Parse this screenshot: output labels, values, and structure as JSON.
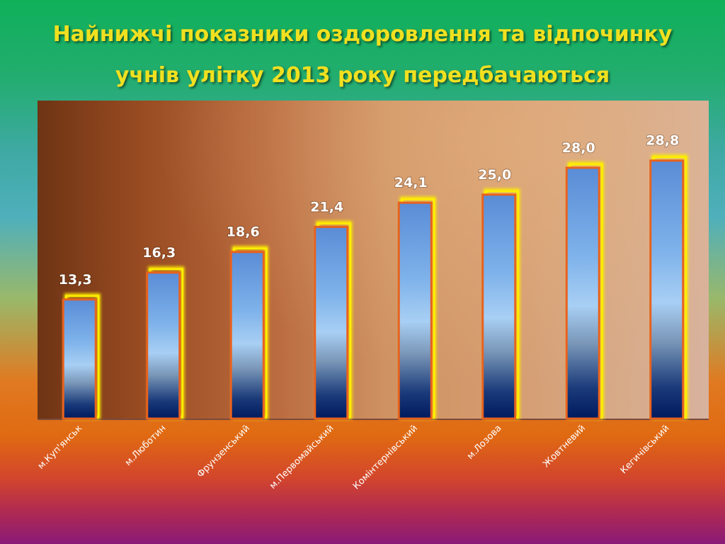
{
  "title": {
    "line1": "Найнижчі показники оздоровлення та відпочинку",
    "line2": "учнів улітку 2013 року передбачаються"
  },
  "chart_data": {
    "type": "bar",
    "categories": [
      "м.Куп'янськ",
      "м.Люботин",
      "Фрунзенський",
      "м.Первомайський",
      "Комінтернівський",
      "м.Лозова",
      "Жовтневий",
      "Кегичівський"
    ],
    "values": [
      13.3,
      16.3,
      18.6,
      21.4,
      24.1,
      25.0,
      28.0,
      28.8
    ],
    "value_labels": [
      "13,3",
      "16,3",
      "18,6",
      "21,4",
      "24,1",
      "25,0",
      "28,0",
      "28,8"
    ],
    "ylim": [
      0,
      35.5
    ],
    "grid": false,
    "legend": "none",
    "colors": {
      "bar_top": "#5b8fd6",
      "bar_mid": "#9cc6f0",
      "bar_bottom": "#001a5e",
      "bar_outline": "#e8621e",
      "bar_glow": "#ffee00"
    }
  }
}
